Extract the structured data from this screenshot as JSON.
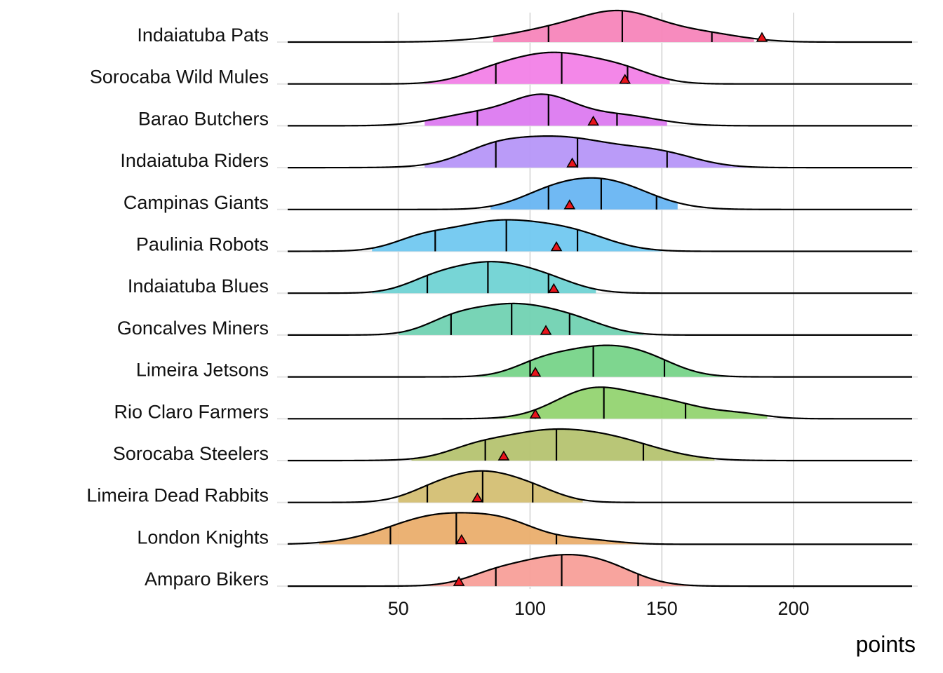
{
  "chart_data": {
    "type": "ridgeline",
    "title": "",
    "xlabel": "points",
    "ylabel": "",
    "xlim": [
      8,
      245
    ],
    "x_ticks": [
      50,
      100,
      150,
      200
    ],
    "grid": true,
    "marker": "red triangle = observed points",
    "teams": [
      {
        "name": "Indaiatuba Pats",
        "color": "#f681b8",
        "peaks": [
          [
            118,
            22,
            0.8
          ],
          [
            136,
            14,
            0.9
          ],
          [
            165,
            15,
            0.4
          ]
        ],
        "fill_range": [
          86,
          185
        ],
        "quartiles": [
          107,
          135,
          169
        ],
        "observed": 188
      },
      {
        "name": "Sorocaba Wild Mules",
        "color": "#f27de6",
        "peaks": [
          [
            109,
            16,
            1.0
          ],
          [
            135,
            12,
            0.4
          ],
          [
            85,
            12,
            0.3
          ]
        ],
        "fill_range": [
          60,
          153
        ],
        "quartiles": [
          87,
          112,
          137
        ],
        "observed": 136
      },
      {
        "name": "Barao Butchers",
        "color": "#db76f0",
        "peaks": [
          [
            105,
            12,
            1.0
          ],
          [
            80,
            15,
            0.45
          ],
          [
            133,
            15,
            0.4
          ]
        ],
        "fill_range": [
          60,
          152
        ],
        "quartiles": [
          80,
          107,
          133
        ],
        "observed": 124
      },
      {
        "name": "Indaiatuba Riders",
        "color": "#b492f7",
        "peaks": [
          [
            111,
            22,
            0.95
          ],
          [
            85,
            12,
            0.3
          ],
          [
            150,
            14,
            0.35
          ]
        ],
        "fill_range": [
          60,
          182
        ],
        "quartiles": [
          87,
          118,
          152
        ],
        "observed": 116
      },
      {
        "name": "Campinas Giants",
        "color": "#64b3f2",
        "peaks": [
          [
            127,
            17,
            1.0
          ],
          [
            106,
            12,
            0.3
          ]
        ],
        "fill_range": [
          85,
          156
        ],
        "quartiles": [
          107,
          127,
          148
        ],
        "observed": 115
      },
      {
        "name": "Paulinia Robots",
        "color": "#6cc7f0",
        "peaks": [
          [
            88,
            20,
            1.0
          ],
          [
            118,
            14,
            0.4
          ],
          [
            58,
            10,
            0.25
          ]
        ],
        "fill_range": [
          40,
          150
        ],
        "quartiles": [
          64,
          91,
          118
        ],
        "observed": 110
      },
      {
        "name": "Indaiatuba Blues",
        "color": "#6bd1d2",
        "peaks": [
          [
            84,
            16,
            1.0
          ],
          [
            107,
            12,
            0.3
          ],
          [
            62,
            10,
            0.25
          ]
        ],
        "fill_range": [
          40,
          125
        ],
        "quartiles": [
          61,
          84,
          107
        ],
        "observed": 109
      },
      {
        "name": "Goncalves Miners",
        "color": "#6dd0b0",
        "peaks": [
          [
            93,
            17,
            1.0
          ],
          [
            70,
            10,
            0.3
          ],
          [
            118,
            12,
            0.3
          ]
        ],
        "fill_range": [
          50,
          143
        ],
        "quartiles": [
          70,
          93,
          115
        ],
        "observed": 106
      },
      {
        "name": "Limeira Jetsons",
        "color": "#73d285",
        "peaks": [
          [
            125,
            16,
            1.0
          ],
          [
            145,
            12,
            0.4
          ],
          [
            103,
            10,
            0.3
          ]
        ],
        "fill_range": [
          80,
          180
        ],
        "quartiles": [
          100,
          124,
          151
        ],
        "observed": 102
      },
      {
        "name": "Rio Claro Farmers",
        "color": "#90d26d",
        "peaks": [
          [
            123,
            14,
            1.0
          ],
          [
            150,
            15,
            0.6
          ],
          [
            180,
            10,
            0.15
          ]
        ],
        "fill_range": [
          86,
          190
        ],
        "quartiles": [
          102,
          128,
          159
        ],
        "observed": 102
      },
      {
        "name": "Sorocaba Steelers",
        "color": "#b3c16b",
        "peaks": [
          [
            103,
            20,
            1.0
          ],
          [
            133,
            18,
            0.6
          ],
          [
            78,
            10,
            0.2
          ]
        ],
        "fill_range": [
          55,
          170
        ],
        "quartiles": [
          83,
          110,
          143
        ],
        "observed": 90
      },
      {
        "name": "Limeira Dead Rabbits",
        "color": "#d2bd6f",
        "peaks": [
          [
            82,
            15,
            1.0
          ],
          [
            62,
            10,
            0.2
          ],
          [
            103,
            10,
            0.2
          ]
        ],
        "fill_range": [
          50,
          120
        ],
        "quartiles": [
          61,
          82,
          101
        ],
        "observed": 80
      },
      {
        "name": "London Knights",
        "color": "#e9ab68",
        "peaks": [
          [
            67,
            20,
            1.0
          ],
          [
            92,
            12,
            0.4
          ],
          [
            120,
            12,
            0.15
          ]
        ],
        "fill_range": [
          20,
          150
        ],
        "quartiles": [
          47,
          72,
          110
        ],
        "observed": 74
      },
      {
        "name": "Amparo Bikers",
        "color": "#f79c96",
        "peaks": [
          [
            110,
            18,
            1.0
          ],
          [
            130,
            12,
            0.3
          ],
          [
            85,
            10,
            0.2
          ]
        ],
        "fill_range": [
          62,
          162
        ],
        "quartiles": [
          87,
          112,
          141
        ],
        "observed": 73
      }
    ]
  }
}
